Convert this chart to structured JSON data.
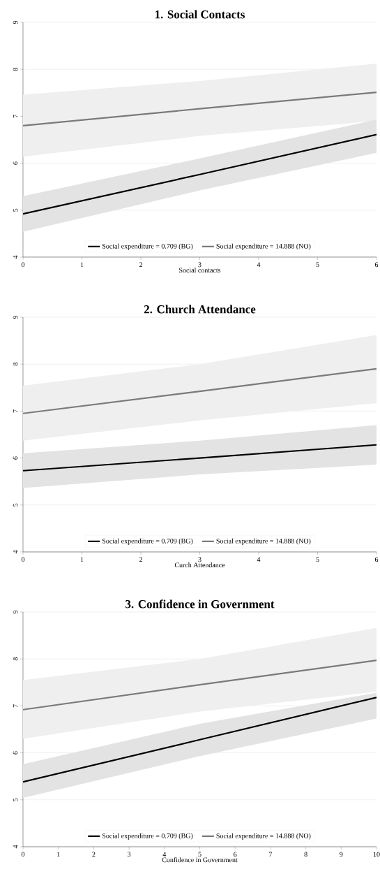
{
  "chart_data": [
    {
      "type": "line",
      "title": "1. Social Contacts",
      "xlabel": "Social contacts",
      "x": [
        0,
        3,
        6
      ],
      "xlim": [
        0,
        6
      ],
      "xticks": [
        0,
        1,
        2,
        3,
        4,
        5,
        6
      ],
      "ylim": [
        4,
        9
      ],
      "yticks": [
        4,
        5,
        6,
        7,
        8,
        9
      ],
      "grid": "y",
      "legend": "bottom",
      "series": [
        {
          "name": "Social expenditure = 0.709 (BG)",
          "color": "#000000",
          "values": [
            4.92,
            5.76,
            6.61
          ],
          "lower": [
            4.54,
            5.42,
            6.22
          ],
          "upper": [
            5.3,
            6.1,
            6.93
          ]
        },
        {
          "name": "Social expenditure = 14.888 (NO)",
          "color": "#7a7a7a",
          "values": [
            6.8,
            7.16,
            7.51
          ],
          "lower": [
            6.14,
            6.58,
            6.9
          ],
          "upper": [
            7.46,
            7.75,
            8.12
          ]
        }
      ]
    },
    {
      "type": "line",
      "title": "2. Church Attendance",
      "xlabel": "Curch Attendance",
      "x": [
        0,
        3,
        6
      ],
      "xlim": [
        0,
        6
      ],
      "xticks": [
        0,
        1,
        2,
        3,
        4,
        5,
        6
      ],
      "ylim": [
        4,
        9
      ],
      "yticks": [
        4,
        5,
        6,
        7,
        8,
        9
      ],
      "grid": "y",
      "legend": "bottom",
      "series": [
        {
          "name": "Social expenditure = 0.709 (BG)",
          "color": "#000000",
          "values": [
            5.73,
            6.0,
            6.28
          ],
          "lower": [
            5.36,
            5.65,
            5.86
          ],
          "upper": [
            6.1,
            6.37,
            6.7
          ]
        },
        {
          "name": "Social expenditure = 14.888 (NO)",
          "color": "#7a7a7a",
          "values": [
            6.95,
            7.42,
            7.9
          ],
          "lower": [
            6.37,
            6.8,
            7.17
          ],
          "upper": [
            7.54,
            8.0,
            8.62
          ]
        }
      ]
    },
    {
      "type": "line",
      "title": "3. Confidence in Government",
      "xlabel": "Confidence in Government",
      "x": [
        0,
        5,
        10
      ],
      "xlim": [
        0,
        10
      ],
      "xticks": [
        0,
        1,
        2,
        3,
        4,
        5,
        6,
        7,
        8,
        9,
        10
      ],
      "ylim": [
        4,
        9
      ],
      "yticks": [
        4,
        5,
        6,
        7,
        8,
        9
      ],
      "grid": "y",
      "legend": "bottom",
      "series": [
        {
          "name": "Social expenditure = 0.709 (BG)",
          "color": "#000000",
          "values": [
            5.38,
            6.28,
            7.18
          ],
          "lower": [
            5.04,
            5.93,
            6.73
          ],
          "upper": [
            5.76,
            6.62,
            7.28
          ]
        },
        {
          "name": "Social expenditure = 14.888 (NO)",
          "color": "#7a7a7a",
          "values": [
            6.92,
            7.45,
            7.97
          ],
          "lower": [
            6.3,
            6.88,
            7.3
          ],
          "upper": [
            7.55,
            8.0,
            8.66
          ]
        }
      ]
    }
  ]
}
